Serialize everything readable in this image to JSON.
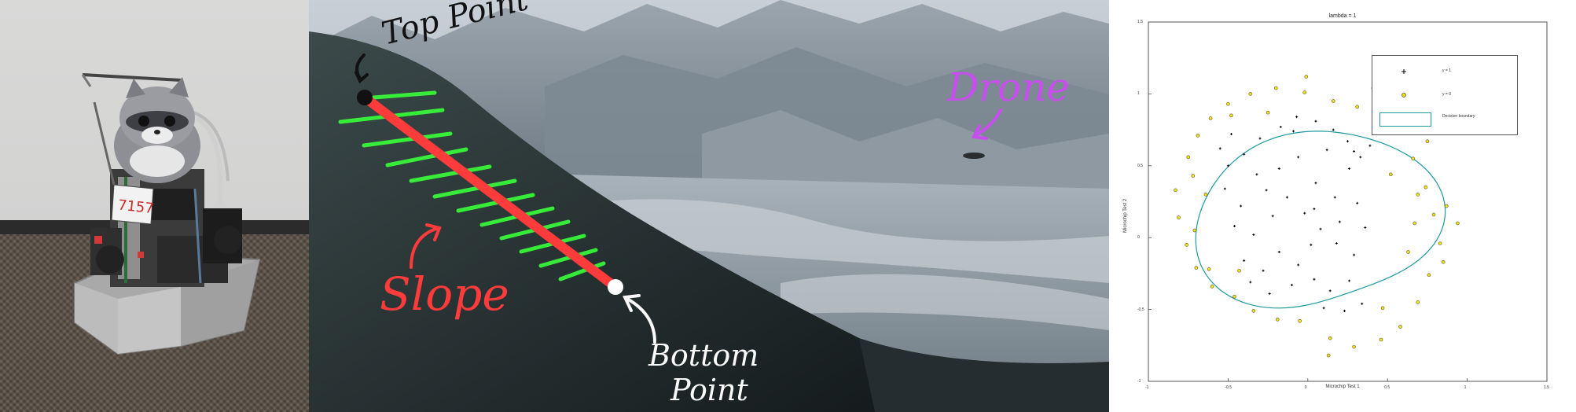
{
  "panels": {
    "robot": {
      "team_number": "7157"
    },
    "terrain": {
      "labels": {
        "top_point": "Top Point",
        "slope": "Slope",
        "bottom": "Bottom",
        "point": "Point",
        "drone": "Drone"
      },
      "colors": {
        "slope_line": "#ff3b3b",
        "stripes": "#39ff3a",
        "drone_label": "#c94ef0"
      }
    },
    "plot": {
      "title": "lambda = 1",
      "xlabel": "Microchip Test 1",
      "ylabel": "Microchip Test 2",
      "x_ticks": [
        "-1",
        "-0.5",
        "0",
        "0.5",
        "1",
        "1.5"
      ],
      "y_ticks": [
        "1.5",
        "1",
        "0.5",
        "0",
        "-0.5",
        "-1"
      ],
      "legend": {
        "entries": [
          "y = 1",
          "y = 0",
          "Decision boundary"
        ]
      }
    }
  },
  "chart_data": {
    "type": "scatter",
    "title": "lambda = 1",
    "xlabel": "Microchip Test 1",
    "ylabel": "Microchip Test 2",
    "xlim": [
      -1,
      1.5
    ],
    "ylim": [
      -1,
      1.5
    ],
    "legend_position": "top-right",
    "series": [
      {
        "name": "y = 1",
        "marker": "+",
        "color": "#000000",
        "points": [
          [
            -0.55,
            0.62
          ],
          [
            -0.48,
            0.72
          ],
          [
            -0.4,
            0.58
          ],
          [
            -0.3,
            0.69
          ],
          [
            -0.17,
            0.77
          ],
          [
            -0.07,
            0.84
          ],
          [
            0.05,
            0.81
          ],
          [
            0.16,
            0.75
          ],
          [
            0.25,
            0.67
          ],
          [
            0.33,
            0.56
          ],
          [
            -0.52,
            0.34
          ],
          [
            -0.42,
            0.22
          ],
          [
            -0.32,
            0.44
          ],
          [
            -0.18,
            0.48
          ],
          [
            -0.06,
            0.56
          ],
          [
            0.05,
            0.38
          ],
          [
            0.17,
            0.28
          ],
          [
            0.26,
            0.48
          ],
          [
            0.31,
            0.24
          ],
          [
            0.2,
            0.11
          ],
          [
            -0.46,
            0.08
          ],
          [
            -0.34,
            0.02
          ],
          [
            -0.22,
            0.15
          ],
          [
            -0.13,
            0.28
          ],
          [
            -0.02,
            0.17
          ],
          [
            0.08,
            0.06
          ],
          [
            0.18,
            -0.04
          ],
          [
            0.29,
            -0.12
          ],
          [
            0.36,
            0.07
          ],
          [
            0.39,
            0.64
          ],
          [
            -0.4,
            -0.16
          ],
          [
            -0.28,
            -0.23
          ],
          [
            -0.18,
            -0.1
          ],
          [
            -0.06,
            -0.19
          ],
          [
            0.04,
            -0.29
          ],
          [
            0.14,
            -0.37
          ],
          [
            0.26,
            -0.3
          ],
          [
            0.34,
            -0.46
          ],
          [
            -0.24,
            -0.39
          ],
          [
            -0.1,
            -0.33
          ],
          [
            0.1,
            -0.49
          ],
          [
            0.23,
            -0.51
          ],
          [
            -0.5,
            0.5
          ],
          [
            -0.09,
            0.74
          ],
          [
            0.12,
            0.61
          ],
          [
            -0.26,
            0.33
          ],
          [
            0.02,
            -0.05
          ],
          [
            -0.36,
            -0.31
          ],
          [
            0.29,
            0.6
          ],
          [
            0.04,
            0.2
          ]
        ]
      },
      {
        "name": "y = 0",
        "marker": "o",
        "color": "#d8c400",
        "points": [
          [
            -0.83,
            0.33
          ],
          [
            -0.75,
            0.56
          ],
          [
            -0.69,
            0.71
          ],
          [
            -0.61,
            0.83
          ],
          [
            -0.5,
            0.93
          ],
          [
            -0.36,
            1.0
          ],
          [
            -0.2,
            1.04
          ],
          [
            -0.02,
            1.01
          ],
          [
            0.16,
            0.95
          ],
          [
            0.31,
            0.91
          ],
          [
            0.45,
            0.85
          ],
          [
            0.56,
            0.73
          ],
          [
            0.66,
            0.55
          ],
          [
            0.74,
            0.35
          ],
          [
            0.79,
            0.16
          ],
          [
            0.83,
            -0.04
          ],
          [
            0.76,
            -0.26
          ],
          [
            0.69,
            -0.45
          ],
          [
            0.58,
            -0.62
          ],
          [
            0.46,
            -0.71
          ],
          [
            0.29,
            -0.76
          ],
          [
            0.13,
            -0.82
          ],
          [
            -0.05,
            -0.58
          ],
          [
            -0.19,
            -0.57
          ],
          [
            -0.34,
            -0.51
          ],
          [
            -0.46,
            -0.41
          ],
          [
            -0.6,
            -0.34
          ],
          [
            -0.7,
            -0.21
          ],
          [
            -0.76,
            -0.05
          ],
          [
            -0.81,
            0.14
          ],
          [
            -0.72,
            0.43
          ],
          [
            -0.64,
            0.3
          ],
          [
            -0.71,
            0.05
          ],
          [
            -0.43,
            -0.23
          ],
          [
            0.69,
            0.3
          ],
          [
            0.63,
            -0.1
          ],
          [
            0.67,
            0.1
          ],
          [
            0.52,
            0.44
          ],
          [
            -0.25,
            0.87
          ],
          [
            0.47,
            -0.49
          ],
          [
            0.87,
            0.22
          ],
          [
            0.94,
            0.1
          ],
          [
            0.53,
            0.88
          ],
          [
            -0.01,
            1.12
          ],
          [
            0.75,
            0.67
          ],
          [
            0.41,
            1.04
          ],
          [
            -0.62,
            -0.22
          ],
          [
            0.85,
            -0.17
          ],
          [
            -0.48,
            0.85
          ],
          [
            0.14,
            -0.7
          ]
        ]
      }
    ],
    "decision_boundary": {
      "name": "Decision boundary",
      "color": "#1a9aa0"
    }
  }
}
